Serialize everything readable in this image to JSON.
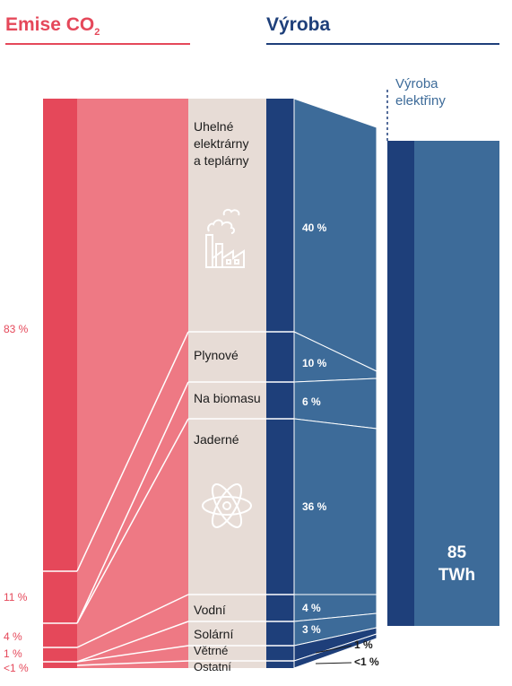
{
  "header": {
    "emissions_title": "Emise CO",
    "emissions_sub": "2",
    "production_title": "Výroba"
  },
  "total": {
    "caption_line1": "Výroba",
    "caption_line2": "elektřiny",
    "value": "85",
    "unit": "TWh"
  },
  "colors": {
    "emissions_dark": "#e5485a",
    "emissions_light": "#ee7984",
    "category_bg": "#e7dcd6",
    "production_dark": "#1e3f7a",
    "production_light": "#3d6b99"
  },
  "icons": {
    "coal": "factory-icon",
    "nuclear": "atom-icon"
  },
  "chart_data": {
    "type": "sankey",
    "title": "",
    "categories": [
      {
        "label_lines": [
          "Uhelné",
          "elektrárny",
          "a teplárny"
        ],
        "production_share": 40,
        "production_label": "40 %",
        "emissions_group": "83 %"
      },
      {
        "label_lines": [
          "Plynové"
        ],
        "production_share": 10,
        "production_label": "10 %",
        "emissions_group": "11 %"
      },
      {
        "label_lines": [
          "Na biomasu"
        ],
        "production_share": 6,
        "production_label": "6 %",
        "emissions_group": "4 %"
      },
      {
        "label_lines": [
          "Jaderné"
        ],
        "production_share": 36,
        "production_label": "36 %",
        "emissions_group": "1 %"
      },
      {
        "label_lines": [
          "Vodní"
        ],
        "production_share": 4,
        "production_label": "4 %",
        "emissions_group": "<1 %"
      },
      {
        "label_lines": [
          "Solární"
        ],
        "production_share": 3,
        "production_label": "3 %",
        "emissions_group": "<1 %"
      },
      {
        "label_lines": [
          "Větrné"
        ],
        "production_share": 1,
        "production_label": "1 %",
        "emissions_group": "<1 %"
      },
      {
        "label_lines": [
          "Ostatní"
        ],
        "production_share": 0.5,
        "production_label": "<1 %",
        "emissions_group": "<1 %"
      }
    ],
    "emissions": [
      {
        "label": "83 %",
        "value": 83
      },
      {
        "label": "11 %",
        "value": 11
      },
      {
        "label": "4 %",
        "value": 4
      },
      {
        "label": "1 %",
        "value": 1
      },
      {
        "label": "<1 %",
        "value": 0.5
      }
    ],
    "total_production_twh": 85
  }
}
